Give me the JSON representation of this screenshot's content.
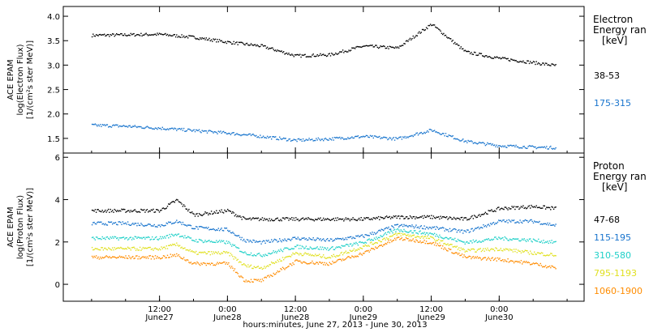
{
  "chart_data": [
    {
      "type": "scatter",
      "ylabel": [
        "ACE EPAM",
        "log(Electron Flux)",
        "[1/(cm²s ster MeV)]"
      ],
      "ylim": [
        1.2,
        4.2
      ],
      "yticks": [
        1.5,
        2.0,
        2.5,
        3.0,
        3.5,
        4.0
      ],
      "ytick_labels": [
        "1.5",
        "2.0",
        "2.5",
        "3.0",
        "3.5",
        "4.0"
      ],
      "legend_title": [
        "Electron",
        "Energy ran",
        "[keV]"
      ],
      "legend_placement": "right",
      "x_hours": [
        0,
        6,
        12,
        18,
        24,
        30,
        36,
        42,
        48,
        54,
        60,
        66,
        72,
        78,
        82
      ],
      "series": [
        {
          "name": "38-53",
          "color": "#000000",
          "y": [
            3.62,
            3.63,
            3.64,
            3.58,
            3.48,
            3.4,
            3.2,
            3.22,
            3.4,
            3.36,
            3.85,
            3.28,
            3.15,
            3.06,
            3.0
          ]
        },
        {
          "name": "175-315",
          "color": "#1874cd",
          "y": [
            1.78,
            1.76,
            1.72,
            1.67,
            1.62,
            1.55,
            1.47,
            1.5,
            1.55,
            1.5,
            1.68,
            1.45,
            1.36,
            1.33,
            1.32
          ]
        }
      ]
    },
    {
      "type": "scatter",
      "ylabel": [
        "ACE EPAM",
        "log(Proton Flux)",
        "[1/(cm²s ster MeV)]"
      ],
      "ylim": [
        -0.8,
        6.2
      ],
      "yticks": [
        0,
        2,
        4,
        6
      ],
      "ytick_labels": [
        "0",
        "2",
        "4",
        "6"
      ],
      "legend_title": [
        "Proton",
        "Energy ran",
        "[keV]"
      ],
      "legend_placement": "right",
      "x_hours": [
        0,
        6,
        12,
        15,
        18,
        24,
        27,
        30,
        36,
        42,
        48,
        54,
        60,
        66,
        72,
        78,
        82
      ],
      "series": [
        {
          "name": "47-68",
          "color": "#000000",
          "y": [
            3.5,
            3.5,
            3.5,
            4.0,
            3.3,
            3.5,
            3.1,
            3.1,
            3.1,
            3.1,
            3.1,
            3.2,
            3.2,
            3.1,
            3.6,
            3.7,
            3.6
          ]
        },
        {
          "name": "115-195",
          "color": "#1874cd",
          "y": [
            2.9,
            2.9,
            2.8,
            3.0,
            2.7,
            2.6,
            2.1,
            2.0,
            2.2,
            2.1,
            2.3,
            2.8,
            2.7,
            2.5,
            3.0,
            3.0,
            2.8
          ]
        },
        {
          "name": "310-580",
          "color": "#20d0c8",
          "y": [
            2.2,
            2.2,
            2.2,
            2.4,
            2.1,
            2.0,
            1.5,
            1.4,
            1.8,
            1.7,
            2.0,
            2.6,
            2.4,
            2.0,
            2.2,
            2.1,
            2.0
          ]
        },
        {
          "name": "795-1193",
          "color": "#e0e020",
          "y": [
            1.7,
            1.7,
            1.7,
            1.9,
            1.5,
            1.5,
            0.9,
            0.8,
            1.5,
            1.3,
            1.8,
            2.4,
            2.2,
            1.6,
            1.7,
            1.5,
            1.4
          ]
        },
        {
          "name": "1060-1900",
          "color": "#ff8c00",
          "y": [
            1.3,
            1.3,
            1.3,
            1.4,
            1.0,
            1.0,
            0.2,
            0.2,
            1.1,
            1.0,
            1.5,
            2.2,
            2.0,
            1.3,
            1.2,
            1.0,
            0.8
          ]
        }
      ]
    }
  ],
  "xaxis": {
    "hours_range": [
      -5,
      87
    ],
    "major_ticks": [
      {
        "hour": 12,
        "time": "12:00",
        "date": "June27"
      },
      {
        "hour": 24,
        "time": "0:00",
        "date": "June28"
      },
      {
        "hour": 36,
        "time": "12:00",
        "date": "June28"
      },
      {
        "hour": 48,
        "time": "0:00",
        "date": "June29"
      },
      {
        "hour": 60,
        "time": "12:00",
        "date": "June29"
      },
      {
        "hour": 72,
        "time": "0:00",
        "date": "June30"
      }
    ],
    "xlabel": "hours:minutes, June 27, 2013 - June 30, 2013"
  }
}
